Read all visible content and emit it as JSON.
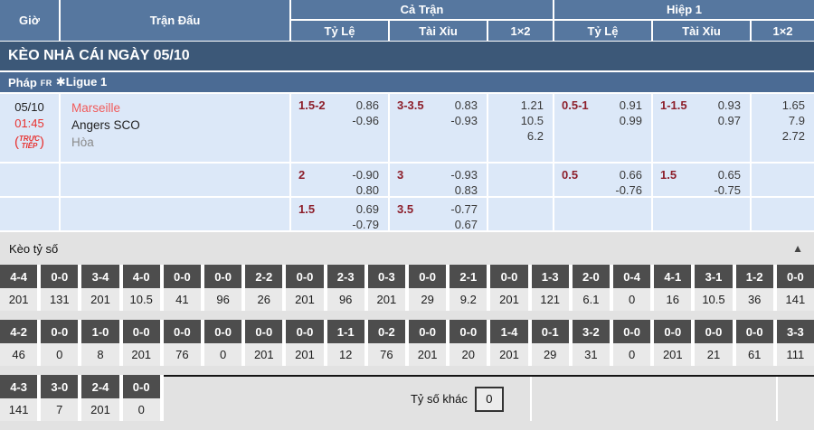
{
  "title": "KÈO NHÀ CÁI NGÀY 05/10",
  "columns": {
    "time": "Giờ",
    "match": "Trận Đấu",
    "full": "Cả Trận",
    "half": "Hiệp 1",
    "sub": [
      "Tỷ Lệ",
      "Tài Xỉu",
      "1×2"
    ]
  },
  "league": {
    "country": "Pháp",
    "code": "fr",
    "name": "✱Ligue 1"
  },
  "match": {
    "date": "05/10",
    "time": "01:45",
    "live": {
      "l1": "TRỰC",
      "l2": "TIẾP"
    },
    "teams": [
      "Marseille",
      "Angers SCO",
      "Hòa"
    ]
  },
  "odds_rows": [
    {
      "full_handicap": {
        "line": "1.5-2",
        "odds": [
          "0.86",
          "-0.96"
        ]
      },
      "full_ou": {
        "line": "3-3.5",
        "odds": [
          "0.83",
          "-0.93"
        ]
      },
      "full_1x2": [
        "1.21",
        "10.5",
        "6.2"
      ],
      "half_handicap": {
        "line": "0.5-1",
        "odds": [
          "0.91",
          "0.99"
        ]
      },
      "half_ou": {
        "line": "1-1.5",
        "odds": [
          "0.93",
          "0.97"
        ]
      },
      "half_1x2": [
        "1.65",
        "7.9",
        "2.72"
      ]
    },
    {
      "full_handicap": {
        "line": "2",
        "odds": [
          "-0.90",
          "0.80"
        ]
      },
      "full_ou": {
        "line": "3",
        "odds": [
          "-0.93",
          "0.83"
        ]
      },
      "full_1x2": [],
      "half_handicap": {
        "line": "0.5",
        "odds": [
          "0.66",
          "-0.76"
        ]
      },
      "half_ou": {
        "line": "1.5",
        "odds": [
          "0.65",
          "-0.75"
        ]
      },
      "half_1x2": []
    },
    {
      "full_handicap": {
        "line": "1.5",
        "odds": [
          "0.69",
          "-0.79"
        ]
      },
      "full_ou": {
        "line": "3.5",
        "odds": [
          "-0.77",
          "0.67"
        ]
      },
      "full_1x2": [],
      "half_handicap": null,
      "half_ou": null,
      "half_1x2": []
    }
  ],
  "score_section": {
    "title": "Kèo tỷ số",
    "collapse_icon": "▲",
    "rows": [
      {
        "scores": [
          "4-4",
          "0-0",
          "3-4",
          "4-0",
          "0-0",
          "0-0",
          "2-2",
          "0-0",
          "2-3",
          "0-3",
          "0-0",
          "2-1",
          "0-0",
          "1-3",
          "2-0",
          "0-4",
          "4-1",
          "3-1",
          "1-2",
          "0-0"
        ],
        "values": [
          "201",
          "131",
          "201",
          "10.5",
          "41",
          "96",
          "26",
          "201",
          "96",
          "201",
          "29",
          "9.2",
          "201",
          "121",
          "6.1",
          "0",
          "16",
          "10.5",
          "36",
          "141"
        ]
      },
      {
        "scores": [
          "4-2",
          "0-0",
          "1-0",
          "0-0",
          "0-0",
          "0-0",
          "0-0",
          "0-0",
          "1-1",
          "0-2",
          "0-0",
          "0-0",
          "1-4",
          "0-1",
          "3-2",
          "0-0",
          "0-0",
          "0-0",
          "0-0",
          "3-3"
        ],
        "values": [
          "46",
          "0",
          "8",
          "201",
          "76",
          "0",
          "201",
          "201",
          "12",
          "76",
          "201",
          "20",
          "201",
          "29",
          "31",
          "0",
          "201",
          "21",
          "61",
          "111"
        ]
      },
      {
        "scores": [
          "4-3",
          "3-0",
          "2-4",
          "0-0"
        ],
        "values": [
          "141",
          "7",
          "201",
          "0"
        ]
      }
    ],
    "other_label": "Tỷ số khác",
    "other_value": "0"
  },
  "colors": {
    "header_bg": "#56779f",
    "title_bg": "#3c5878",
    "league_bg": "#4b6b94",
    "row_bg": "#dce8f8",
    "handicap_text": "#8d1f2b",
    "team_red": "#f15b5b",
    "live_red": "#e8312f",
    "score_cell_bg": "#4d4d4d",
    "section_bg": "#e2e2e2"
  }
}
